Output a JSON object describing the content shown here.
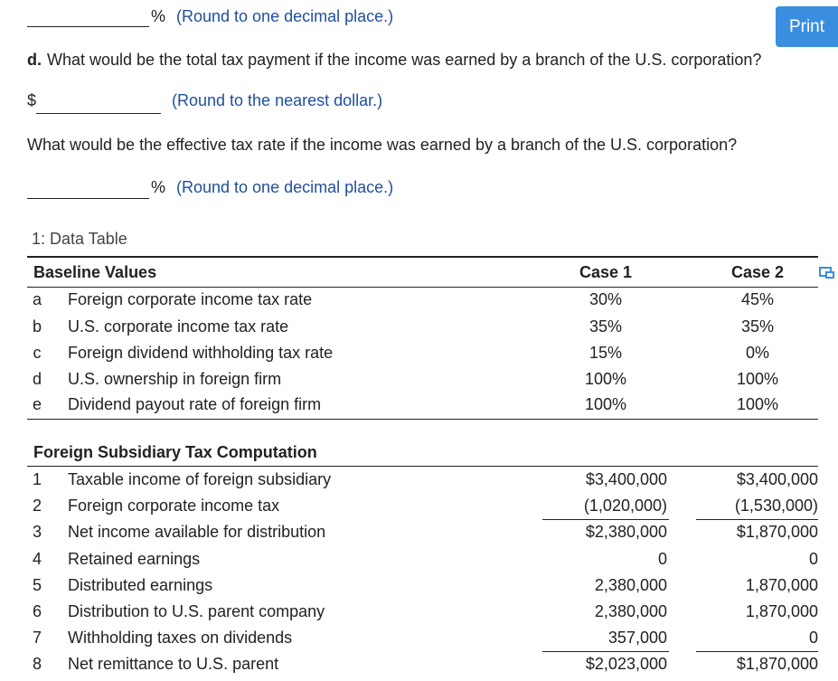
{
  "top_answer": {
    "unit": "%",
    "hint": "(Round to one decimal place.)"
  },
  "print_button": "Print",
  "question_d": {
    "label": "d.",
    "text": "What would be the total tax payment if the income was earned by a branch of the U.S. corporation?"
  },
  "answer_d_payment": {
    "unit": "$",
    "hint": "(Round to the nearest dollar.)"
  },
  "question_d_rate": "What would be the effective tax rate if the income was earned by a branch of the U.S. corporation?",
  "answer_d_rate": {
    "unit": "%",
    "hint": "(Round to one decimal place.)"
  },
  "data_table": {
    "title": "1: Data Table",
    "baseline": {
      "header": [
        "Baseline Values",
        "Case 1",
        "Case 2"
      ],
      "rows": [
        [
          "a",
          "Foreign corporate income tax rate",
          "30%",
          "45%"
        ],
        [
          "b",
          "U.S. corporate income tax rate",
          "35%",
          "35%"
        ],
        [
          "c",
          "Foreign dividend withholding tax rate",
          "15%",
          "0%"
        ],
        [
          "d",
          "U.S. ownership in foreign firm",
          "100%",
          "100%"
        ],
        [
          "e",
          "Dividend payout rate of foreign firm",
          "100%",
          "100%"
        ]
      ]
    },
    "computation": {
      "header": "Foreign Subsidiary Tax Computation",
      "rows": [
        [
          "1",
          "Taxable income of foreign subsidiary",
          "$3,400,000",
          "$3,400,000"
        ],
        [
          "2",
          "Foreign corporate income tax",
          "(1,020,000)",
          "(1,530,000)"
        ],
        [
          "3",
          "Net income available for distribution",
          "$2,380,000",
          "$1,870,000"
        ],
        [
          "4",
          "Retained earnings",
          "0",
          "0"
        ],
        [
          "5",
          "Distributed earnings",
          "2,380,000",
          "1,870,000"
        ],
        [
          "6",
          "Distribution to U.S. parent company",
          "2,380,000",
          "1,870,000"
        ],
        [
          "7",
          "Withholding taxes on dividends",
          "357,000",
          "0"
        ],
        [
          "8",
          "Net remittance to U.S. parent",
          "$2,023,000",
          "$1,870,000"
        ]
      ]
    }
  }
}
